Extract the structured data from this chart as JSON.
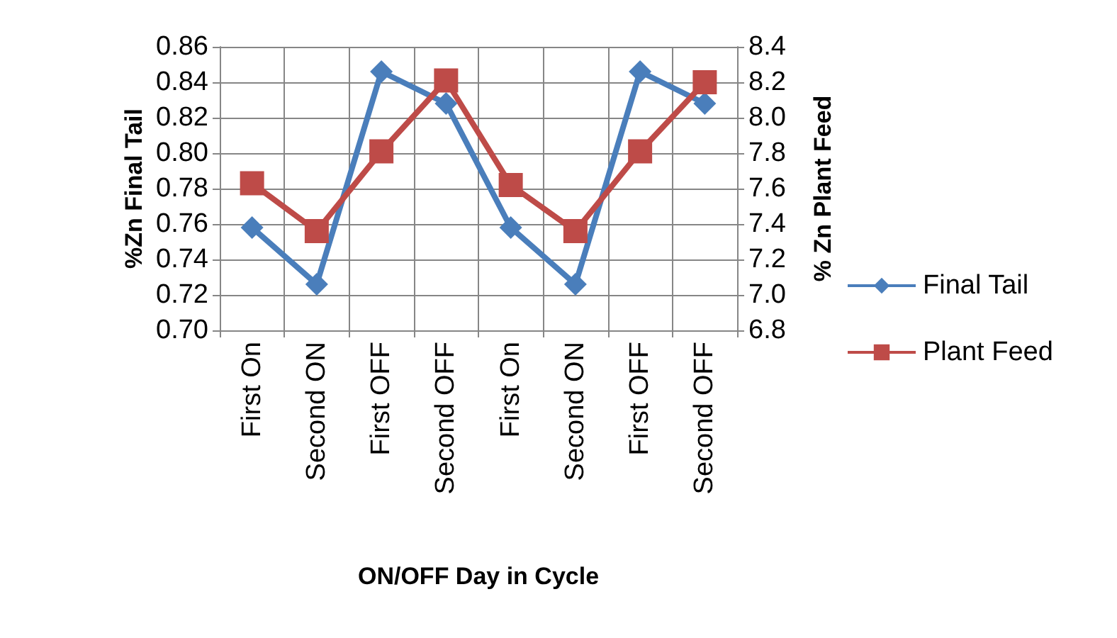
{
  "chart_data": {
    "type": "line",
    "xlabel": "ON/OFF Day in Cycle",
    "ylabel": "%Zn Final Tail",
    "y2label": "% Zn Plant Feed",
    "categories": [
      "First On",
      "Second ON",
      "First OFF",
      "Second OFF",
      "First On",
      "Second ON",
      "First OFF",
      "Second OFF"
    ],
    "series": [
      {
        "name": "Final Tail",
        "color": "#4a7ebb",
        "marker": "diamond",
        "values": [
          0.758,
          0.726,
          0.846,
          0.828,
          0.758,
          0.726,
          0.846,
          0.828
        ]
      },
      {
        "name": "Plant Feed",
        "color": "#be4b48",
        "marker": "square",
        "axis": "y2",
        "values": [
          7.63,
          7.36,
          7.81,
          8.21,
          7.62,
          7.36,
          7.81,
          8.2
        ]
      }
    ],
    "ylim": [
      0.7,
      0.86
    ],
    "yticks": [
      {
        "value": 0.7,
        "label": "0.70"
      },
      {
        "value": 0.72,
        "label": "0.72"
      },
      {
        "value": 0.74,
        "label": "0.74"
      },
      {
        "value": 0.76,
        "label": "0.76"
      },
      {
        "value": 0.78,
        "label": "0.78"
      },
      {
        "value": 0.8,
        "label": "0.80"
      },
      {
        "value": 0.82,
        "label": "0.82"
      },
      {
        "value": 0.84,
        "label": "0.84"
      },
      {
        "value": 0.86,
        "label": "0.86"
      }
    ],
    "y2lim": [
      6.8,
      8.4
    ],
    "y2ticks": [
      6.8,
      {
        "value": 7.0,
        "label": "7.0"
      },
      7.2,
      7.4,
      7.6,
      7.8,
      {
        "value": 8.0,
        "label": "8.0"
      },
      8.2,
      8.4
    ],
    "grid": true,
    "legend": "right",
    "line_style": "solid"
  }
}
